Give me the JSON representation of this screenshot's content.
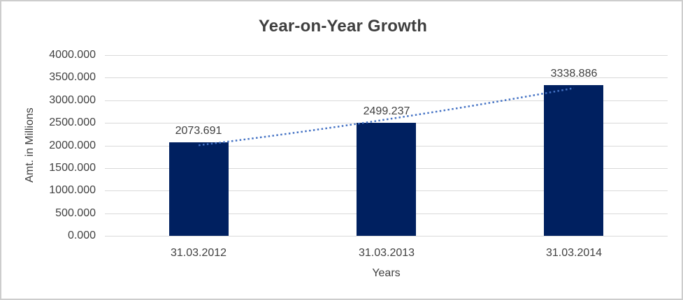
{
  "window": {
    "background": "#ffffff",
    "border_color": "#cdcdcd"
  },
  "chart_data": {
    "type": "bar",
    "title": "Year-on-Year Growth",
    "xlabel": "Years",
    "ylabel": "Amt. in Millions",
    "categories": [
      "31.03.2012",
      "31.03.2013",
      "31.03.2014"
    ],
    "values": [
      2073.691,
      2499.237,
      3338.886
    ],
    "value_labels": [
      "2073.691",
      "2499.237",
      "3338.886"
    ],
    "ylim": [
      0,
      4000
    ],
    "ytick_step": 500,
    "ytick_labels": [
      "0.000",
      "500.000",
      "1000.000",
      "1500.000",
      "2000.000",
      "2500.000",
      "3000.000",
      "3500.000",
      "4000.000"
    ],
    "grid": true,
    "legend_position": "none",
    "bar_color": "#002060",
    "trendline": {
      "type": "linear",
      "style": "dotted",
      "color": "#4472c4"
    },
    "gridline_color": "#d9d9d9",
    "text_color": "#404040",
    "title_color": "#3f3f3f"
  }
}
